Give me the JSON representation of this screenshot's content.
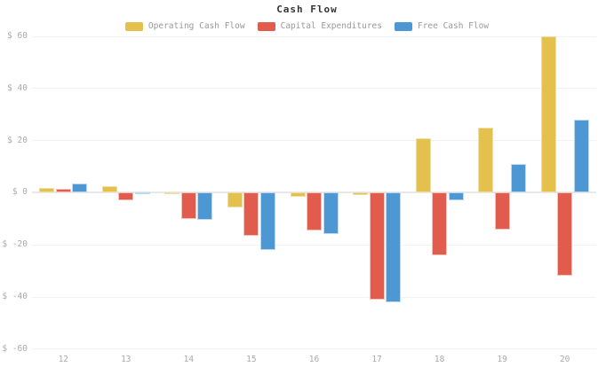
{
  "chart_data": {
    "type": "bar",
    "title": "Cash Flow",
    "categories": [
      "12",
      "13",
      "14",
      "15",
      "16",
      "17",
      "18",
      "19",
      "20"
    ],
    "series": [
      {
        "name": "Operating Cash Flow",
        "color": "#e3c14c",
        "border_color": "#f0dfa4",
        "values": [
          2,
          2.5,
          -0.5,
          -5.5,
          -1.5,
          -1,
          21,
          25,
          60
        ]
      },
      {
        "name": "Capital Expenditures",
        "color": "#e25c4d",
        "border_color": "#f4c3bb",
        "values": [
          1.5,
          -3,
          -10,
          -16.5,
          -14.5,
          -41,
          -24,
          -14,
          -32
        ]
      },
      {
        "name": "Free Cash Flow",
        "color": "#4d97d2",
        "border_color": "#bcd9ef",
        "values": [
          3.5,
          -0.5,
          -10.5,
          -22,
          -16,
          -42,
          -3,
          11,
          28
        ]
      }
    ],
    "xlabel": "",
    "ylabel": "",
    "ylim": [
      -60,
      60
    ],
    "ytick_values": [
      60,
      40,
      20,
      0,
      -20,
      -40,
      -60
    ],
    "ytick_labels": [
      "$ 60",
      "$ 40",
      "$ 20",
      "$ 0",
      "$ -20",
      "$ -40",
      "$ -60"
    ],
    "ytick_prefix": "$ ",
    "grid": true,
    "legend_position": "top-center",
    "colors": {
      "background": "#ffffff",
      "grid_line": "#f2f2f2",
      "zero_line": "#e8e8e8",
      "tick_text": "#aaaaaa",
      "legend_text": "#999999",
      "title_text": "#333333"
    }
  }
}
